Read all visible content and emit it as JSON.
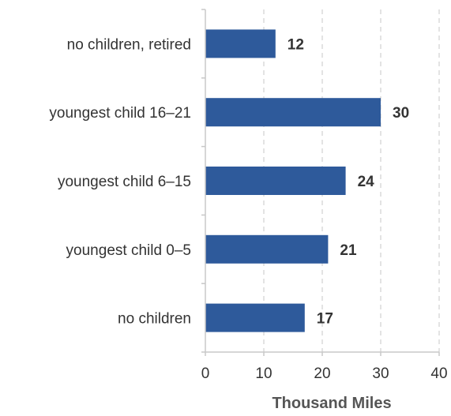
{
  "chart_data": {
    "type": "bar",
    "orientation": "horizontal",
    "categories": [
      "no children, retired",
      "youngest child 16–21",
      "youngest child 6–15",
      "youngest child 0–5",
      "no children"
    ],
    "values": [
      12,
      30,
      24,
      21,
      17
    ],
    "data_labels": [
      "12",
      "30",
      "24",
      "21",
      "17"
    ],
    "xlabel": "Thousand Miles",
    "xlim": [
      0,
      40
    ],
    "xticks": [
      0,
      10,
      20,
      30,
      40
    ],
    "xtick_labels": [
      "0",
      "10",
      "20",
      "30",
      "40"
    ],
    "grid": "vertical dashed",
    "bar_color": "#2e5a9b",
    "grid_color": "#d0d0d0",
    "axis_color": "#c8c8c8"
  }
}
